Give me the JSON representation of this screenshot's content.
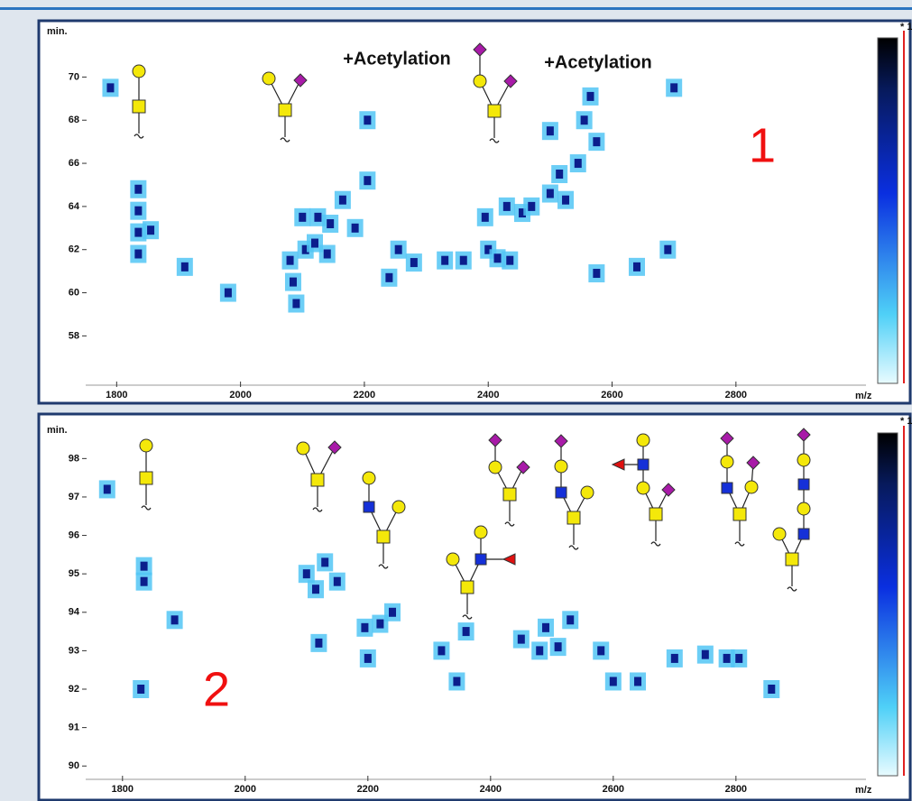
{
  "charts": [
    {
      "type": "heatmap",
      "label": "1",
      "y_label": "min.",
      "x_label": "m/z",
      "corner_note": "* 1",
      "annotations": [
        "+Acetylation",
        "+Acetylation"
      ],
      "color": "#0b1e8c",
      "xlim": [
        1750,
        3010
      ],
      "ylim": [
        55.8,
        72.4
      ],
      "xticks": [
        1800,
        2000,
        2200,
        2400,
        2600,
        2800
      ],
      "yticks": [
        58,
        60,
        62,
        64,
        66,
        68,
        70
      ],
      "x": [
        1790,
        1835,
        1835,
        1835,
        1835,
        1855,
        1980,
        1910,
        2080,
        2085,
        2090,
        2100,
        2105,
        2120,
        2125,
        2140,
        2145,
        2165,
        2185,
        2205,
        2205,
        2255,
        2280,
        2240,
        2330,
        2360,
        2395,
        2400,
        2415,
        2435,
        2430,
        2455,
        2470,
        2500,
        2500,
        2515,
        2525,
        2545,
        2555,
        2565,
        2575,
        2575,
        2640,
        2690,
        2700
      ],
      "values": [
        69.5,
        62.8,
        63.8,
        61.8,
        64.8,
        62.9,
        60,
        61.2,
        61.5,
        60.5,
        59.5,
        63.5,
        62,
        62.3,
        63.5,
        61.8,
        63.2,
        64.3,
        63,
        65.2,
        68,
        62,
        61.4,
        60.7,
        61.5,
        61.5,
        63.5,
        62,
        61.6,
        61.5,
        64,
        63.7,
        64,
        64.6,
        67.5,
        65.5,
        64.3,
        66,
        68,
        69.1,
        67,
        60.9,
        61.2,
        62,
        69.5
      ]
    },
    {
      "type": "heatmap",
      "label": "2",
      "y_label": "min.",
      "x_label": "m/z",
      "corner_note": "* 1",
      "annotations": [],
      "color": "#0b1e8c",
      "xlim": [
        1740,
        3012
      ],
      "ylim": [
        89.7,
        98.9
      ],
      "xticks": [
        1800,
        2000,
        2200,
        2400,
        2600,
        2800
      ],
      "yticks": [
        90,
        91,
        92,
        93,
        94,
        95,
        96,
        97,
        98
      ],
      "x": [
        1835,
        1835,
        1830,
        1885,
        2100,
        2115,
        2130,
        2150,
        2120,
        2195,
        2200,
        2220,
        2240,
        2320,
        2345,
        2450,
        2480,
        2490,
        2510,
        2530,
        2580,
        2600,
        2640,
        2700,
        2750,
        2785,
        2805,
        2858,
        1775,
        2360
      ],
      "values": [
        95.2,
        94.8,
        92,
        93.8,
        95,
        94.6,
        95.3,
        94.8,
        93.2,
        93.6,
        92.8,
        93.7,
        94,
        93,
        92.2,
        93.3,
        93,
        93.6,
        93.1,
        93.8,
        93,
        92.2,
        92.2,
        92.8,
        92.9,
        92.8,
        92.8,
        92,
        97.2,
        93.5
      ]
    }
  ]
}
